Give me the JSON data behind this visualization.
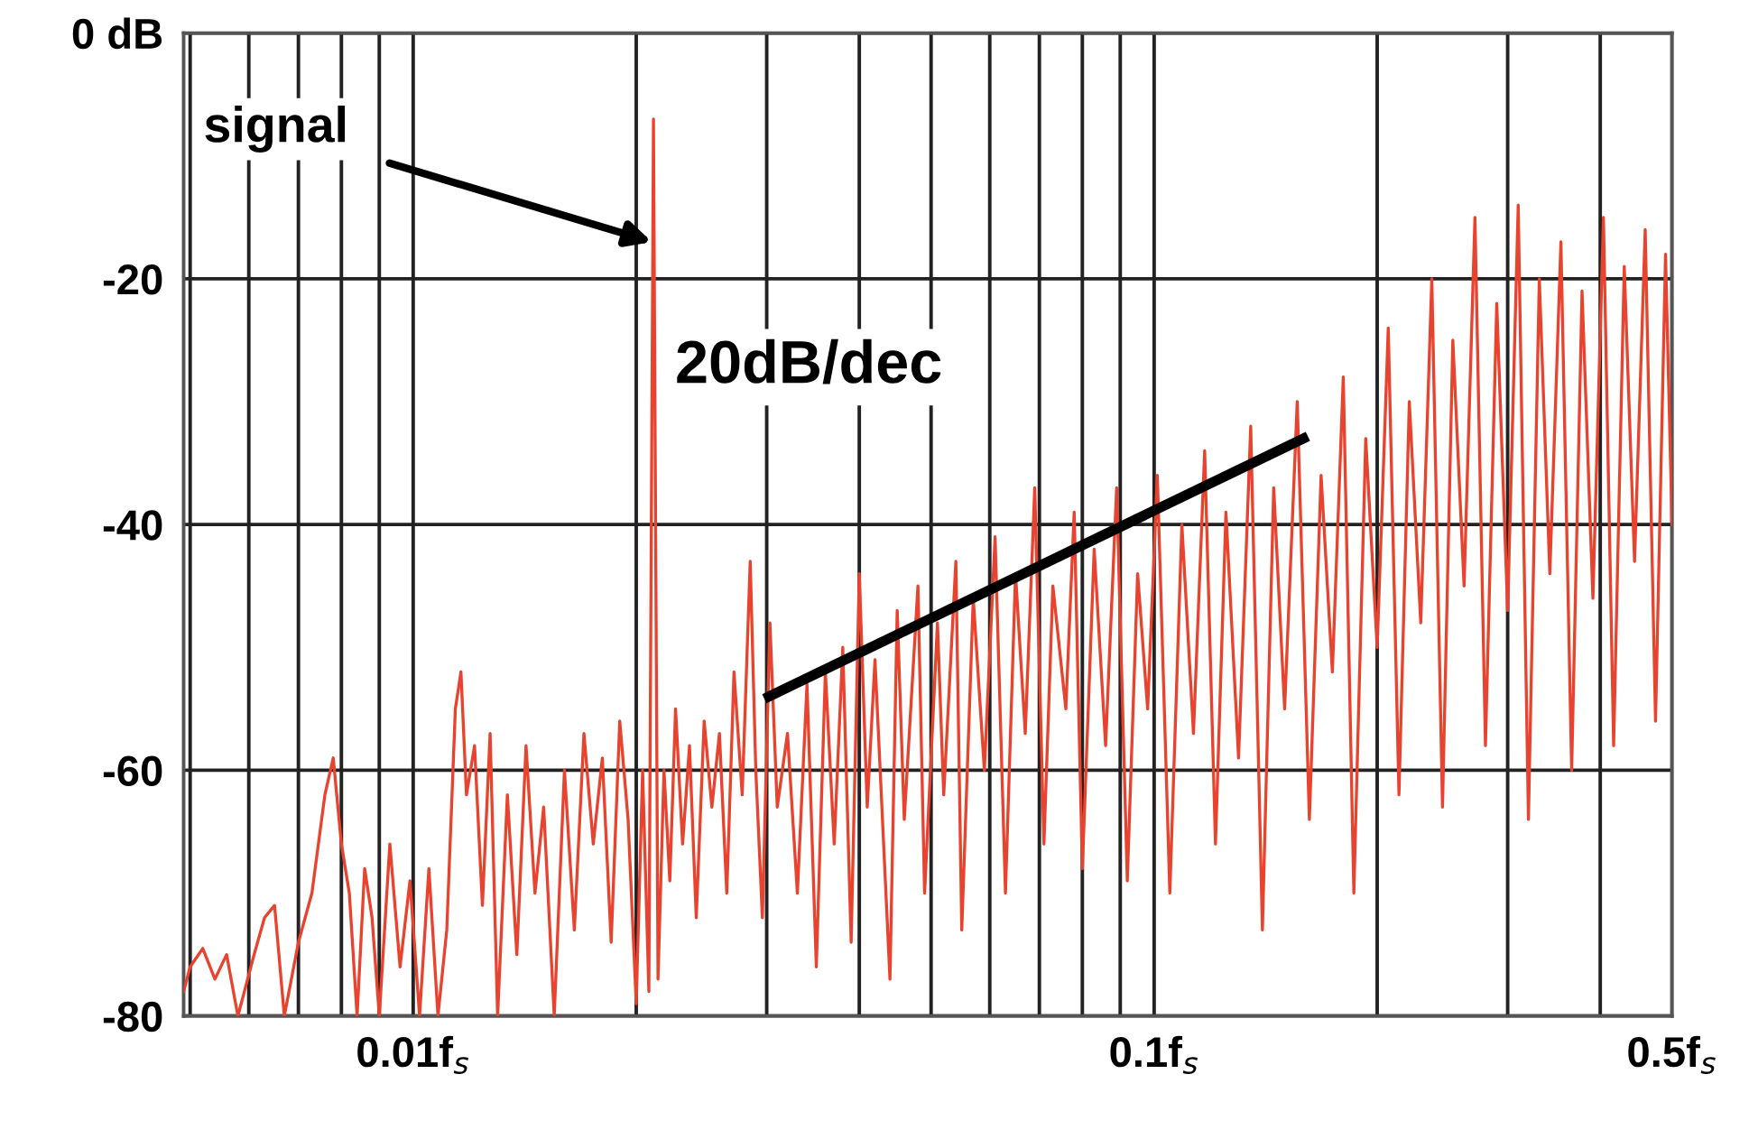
{
  "chart_data": {
    "type": "line",
    "log": "x",
    "grid": true,
    "xlim": [
      0.0049,
      0.5
    ],
    "ylim": [
      -80,
      0
    ],
    "xticks": [
      {
        "value": 0.005,
        "label": null
      },
      {
        "value": 0.006,
        "label": null
      },
      {
        "value": 0.007,
        "label": null
      },
      {
        "value": 0.008,
        "label": null
      },
      {
        "value": 0.009,
        "label": null
      },
      {
        "value": 0.01,
        "label": "0.01f$_{s}$"
      },
      {
        "value": 0.02,
        "label": null
      },
      {
        "value": 0.03,
        "label": null
      },
      {
        "value": 0.04,
        "label": null
      },
      {
        "value": 0.05,
        "label": null
      },
      {
        "value": 0.06,
        "label": null
      },
      {
        "value": 0.07,
        "label": null
      },
      {
        "value": 0.08,
        "label": null
      },
      {
        "value": 0.09,
        "label": null
      },
      {
        "value": 0.1,
        "label": "0.1f$_{s}$"
      },
      {
        "value": 0.2,
        "label": null
      },
      {
        "value": 0.3,
        "label": null
      },
      {
        "value": 0.4,
        "label": null
      },
      {
        "value": 0.5,
        "label": "0.5f$_{s}$"
      }
    ],
    "yticks": [
      {
        "value": 0,
        "label": "0 dB"
      },
      -20,
      -40,
      -60,
      -80
    ],
    "annotations": [
      {
        "text": "signal",
        "x": 0.021,
        "y": -17
      },
      "20dB/dec"
    ],
    "series": [
      {
        "color": "#e8432e",
        "x": [
          0.0049,
          0.005,
          0.0052,
          0.0054,
          0.0056,
          0.0058,
          0.0061,
          0.0063,
          0.0065,
          0.0067,
          0.007,
          0.0073,
          0.0076,
          0.0078,
          0.008,
          0.0082,
          0.0084,
          0.0086,
          0.0088,
          0.009,
          0.0093,
          0.0096,
          0.0099,
          0.0102,
          0.0105,
          0.0108,
          0.0111,
          0.0114,
          0.0116,
          0.0118,
          0.0121,
          0.0124,
          0.0127,
          0.013,
          0.0134,
          0.0138,
          0.0142,
          0.0146,
          0.015,
          0.0155,
          0.016,
          0.0165,
          0.017,
          0.0175,
          0.018,
          0.0185,
          0.019,
          0.0195,
          0.02,
          0.0204,
          0.0208,
          0.0211,
          0.0214,
          0.0218,
          0.0222,
          0.0226,
          0.0231,
          0.0236,
          0.0241,
          0.0247,
          0.0253,
          0.0259,
          0.0265,
          0.0271,
          0.0278,
          0.0285,
          0.029,
          0.0296,
          0.0303,
          0.031,
          0.032,
          0.033,
          0.034,
          0.035,
          0.036,
          0.037,
          0.038,
          0.039,
          0.04,
          0.041,
          0.042,
          0.044,
          0.045,
          0.046,
          0.048,
          0.049,
          0.051,
          0.052,
          0.054,
          0.055,
          0.057,
          0.059,
          0.061,
          0.063,
          0.065,
          0.067,
          0.069,
          0.071,
          0.073,
          0.076,
          0.078,
          0.08,
          0.083,
          0.086,
          0.089,
          0.092,
          0.095,
          0.098,
          0.101,
          0.105,
          0.109,
          0.113,
          0.117,
          0.121,
          0.125,
          0.13,
          0.135,
          0.14,
          0.145,
          0.15,
          0.156,
          0.162,
          0.168,
          0.174,
          0.18,
          0.186,
          0.193,
          0.2,
          0.207,
          0.214,
          0.221,
          0.229,
          0.237,
          0.245,
          0.253,
          0.262,
          0.271,
          0.28,
          0.29,
          0.3,
          0.31,
          0.32,
          0.331,
          0.342,
          0.354,
          0.366,
          0.378,
          0.391,
          0.404,
          0.417,
          0.431,
          0.445,
          0.46,
          0.475,
          0.49,
          0.5
        ],
        "values": [
          -78,
          -76,
          -74.5,
          -77,
          -75,
          -80,
          -75,
          -72,
          -71,
          -80,
          -74,
          -70,
          -62,
          -59,
          -66,
          -70,
          -80,
          -68,
          -72,
          -80,
          -66,
          -76,
          -69,
          -80,
          -68,
          -80,
          -73,
          -55,
          -52,
          -62,
          -58,
          -71,
          -57,
          -80,
          -62,
          -75,
          -58,
          -70,
          -63,
          -80,
          -60,
          -73,
          -57,
          -66,
          -59,
          -74,
          -56,
          -64,
          -79,
          -60,
          -78,
          -7,
          -77,
          -60,
          -69,
          -55,
          -66,
          -58,
          -72,
          -56,
          -63,
          -57,
          -70,
          -52,
          -62,
          -43,
          -60,
          -72,
          -48,
          -63,
          -57,
          -70,
          -53,
          -76,
          -52,
          -66,
          -50,
          -74,
          -44,
          -63,
          -51,
          -77,
          -47,
          -64,
          -45,
          -70,
          -48,
          -62,
          -43,
          -73,
          -46,
          -60,
          -41,
          -70,
          -44,
          -57,
          -37,
          -66,
          -45,
          -55,
          -39,
          -68,
          -42,
          -58,
          -37,
          -69,
          -44,
          -55,
          -36,
          -70,
          -40,
          -57,
          -34,
          -66,
          -39,
          -59,
          -32,
          -73,
          -37,
          -55,
          -30,
          -64,
          -36,
          -52,
          -28,
          -70,
          -33,
          -50,
          -24,
          -62,
          -30,
          -48,
          -20,
          -63,
          -25,
          -45,
          -15,
          -58,
          -22,
          -47,
          -14,
          -64,
          -20,
          -44,
          -17,
          -60,
          -21,
          -46,
          -15,
          -58,
          -19,
          -43,
          -16,
          -56,
          -18,
          -40
        ]
      },
      {
        "type": "line",
        "color": "#000000",
        "x": [
          0.0302,
          0.159
        ],
        "values": [
          -54,
          -33
        ]
      }
    ]
  }
}
